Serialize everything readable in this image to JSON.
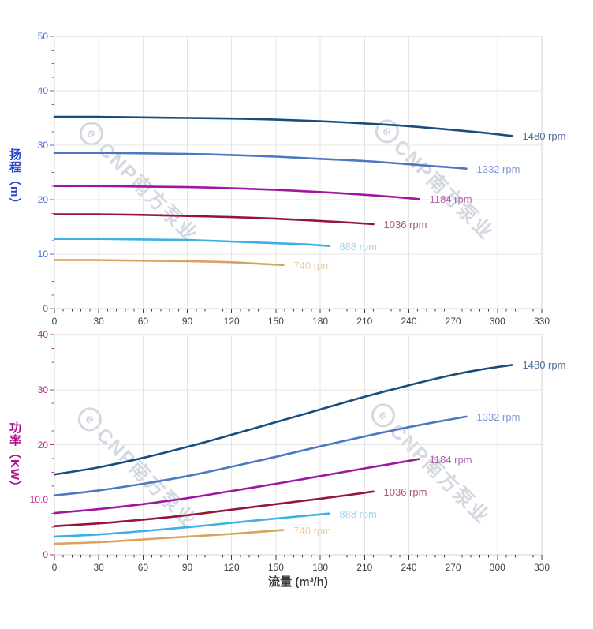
{
  "watermark": {
    "logo": "e",
    "text": "CNP南方泵业"
  },
  "colors": {
    "x_tick": "#3f3f3f",
    "grid": "#e4e4e4",
    "frame": "#d6d6d6",
    "head_axis": "#4a6fd8",
    "head_title": "#2f46cc",
    "power_axis": "#c42894",
    "power_title": "#b30d8e"
  },
  "chart_data": [
    {
      "type": "line",
      "panel": "head",
      "ylabel": "扬程（m）",
      "xlabel": "流量 (m³/h)",
      "xlim": [
        0,
        330
      ],
      "ylim": [
        0,
        50
      ],
      "x_major_step": 30,
      "x_minor_step": 6,
      "y_major_step": 10,
      "y_minor_step": 2.5,
      "grid": true,
      "axis_color": "#4a6fd8",
      "x_tick_labels": [
        "0",
        "30",
        "60",
        "90",
        "120",
        "150",
        "180",
        "210",
        "240",
        "270",
        "300",
        "330"
      ],
      "y_tick_labels": [
        "0",
        "10",
        "20",
        "30",
        "40",
        "50"
      ],
      "legend_position": "right-of-curve-end",
      "series": [
        {
          "name": "1480 rpm",
          "color": "#174e7d",
          "label_color": "#4c6e99",
          "points": [
            [
              0,
              35.2
            ],
            [
              30,
              35.2
            ],
            [
              60,
              35.1
            ],
            [
              90,
              35.0
            ],
            [
              120,
              34.9
            ],
            [
              150,
              34.7
            ],
            [
              180,
              34.4
            ],
            [
              210,
              34.0
            ],
            [
              240,
              33.5
            ],
            [
              270,
              32.8
            ],
            [
              290,
              32.3
            ],
            [
              310,
              31.7
            ]
          ]
        },
        {
          "name": "1332 rpm",
          "color": "#4b78c0",
          "label_color": "#7f9ad6",
          "points": [
            [
              0,
              28.6
            ],
            [
              30,
              28.6
            ],
            [
              60,
              28.5
            ],
            [
              90,
              28.4
            ],
            [
              120,
              28.2
            ],
            [
              150,
              27.9
            ],
            [
              180,
              27.5
            ],
            [
              210,
              27.1
            ],
            [
              240,
              26.5
            ],
            [
              260,
              26.1
            ],
            [
              279,
              25.7
            ]
          ]
        },
        {
          "name": "1184 rpm",
          "color": "#a016a0",
          "label_color": "#b262b2",
          "points": [
            [
              0,
              22.5
            ],
            [
              30,
              22.5
            ],
            [
              60,
              22.4
            ],
            [
              90,
              22.3
            ],
            [
              120,
              22.1
            ],
            [
              150,
              21.8
            ],
            [
              180,
              21.4
            ],
            [
              210,
              20.9
            ],
            [
              230,
              20.5
            ],
            [
              247,
              20.1
            ]
          ]
        },
        {
          "name": "1036 rpm",
          "color": "#961637",
          "label_color": "#a85a72",
          "points": [
            [
              0,
              17.3
            ],
            [
              30,
              17.3
            ],
            [
              60,
              17.2
            ],
            [
              90,
              17.0
            ],
            [
              120,
              16.8
            ],
            [
              150,
              16.5
            ],
            [
              180,
              16.1
            ],
            [
              200,
              15.8
            ],
            [
              216,
              15.5
            ]
          ]
        },
        {
          "name": "888 rpm",
          "color": "#3cb0e4",
          "label_color": "#a3d5f2",
          "points": [
            [
              0,
              12.8
            ],
            [
              30,
              12.8
            ],
            [
              60,
              12.7
            ],
            [
              90,
              12.6
            ],
            [
              120,
              12.3
            ],
            [
              150,
              12.0
            ],
            [
              170,
              11.8
            ],
            [
              186,
              11.5
            ]
          ]
        },
        {
          "name": "740 rpm",
          "color": "#d9a260",
          "label_color": "#ead1a9",
          "points": [
            [
              0,
              8.9
            ],
            [
              30,
              8.9
            ],
            [
              60,
              8.8
            ],
            [
              90,
              8.7
            ],
            [
              120,
              8.5
            ],
            [
              140,
              8.2
            ],
            [
              155,
              8.0
            ]
          ]
        }
      ]
    },
    {
      "type": "line",
      "panel": "power",
      "ylabel": "功率（KW）",
      "xlabel": "流量 (m³/h)",
      "xlim": [
        0,
        330
      ],
      "ylim": [
        0,
        40
      ],
      "x_major_step": 30,
      "x_minor_step": 6,
      "y_major_step": 10,
      "y_minor_step": 2.5,
      "grid": true,
      "axis_color": "#c42894",
      "x_tick_labels": [
        "0",
        "30",
        "60",
        "90",
        "120",
        "150",
        "180",
        "210",
        "240",
        "270",
        "300",
        "330"
      ],
      "y_tick_labels": [
        "0",
        "10.0",
        "20",
        "30",
        "40"
      ],
      "legend_position": "right-of-curve-end",
      "series": [
        {
          "name": "1480 rpm",
          "color": "#174e7d",
          "label_color": "#4c6e99",
          "points": [
            [
              0,
              14.6
            ],
            [
              30,
              15.9
            ],
            [
              60,
              17.6
            ],
            [
              90,
              19.6
            ],
            [
              120,
              21.8
            ],
            [
              150,
              24.1
            ],
            [
              180,
              26.4
            ],
            [
              210,
              28.7
            ],
            [
              240,
              30.8
            ],
            [
              270,
              32.7
            ],
            [
              290,
              33.7
            ],
            [
              310,
              34.5
            ]
          ]
        },
        {
          "name": "1332 rpm",
          "color": "#4b78c0",
          "label_color": "#7f9ad6",
          "points": [
            [
              0,
              10.8
            ],
            [
              30,
              11.7
            ],
            [
              60,
              12.9
            ],
            [
              90,
              14.3
            ],
            [
              120,
              16.0
            ],
            [
              150,
              17.8
            ],
            [
              180,
              19.7
            ],
            [
              210,
              21.5
            ],
            [
              240,
              23.2
            ],
            [
              260,
              24.2
            ],
            [
              279,
              25.1
            ]
          ]
        },
        {
          "name": "1184 rpm",
          "color": "#a016a0",
          "label_color": "#b262b2",
          "points": [
            [
              0,
              7.6
            ],
            [
              30,
              8.3
            ],
            [
              60,
              9.2
            ],
            [
              90,
              10.3
            ],
            [
              120,
              11.6
            ],
            [
              150,
              12.9
            ],
            [
              180,
              14.3
            ],
            [
              210,
              15.7
            ],
            [
              230,
              16.6
            ],
            [
              247,
              17.4
            ]
          ]
        },
        {
          "name": "1036 rpm",
          "color": "#961637",
          "label_color": "#a85a72",
          "points": [
            [
              0,
              5.2
            ],
            [
              30,
              5.7
            ],
            [
              60,
              6.4
            ],
            [
              90,
              7.2
            ],
            [
              120,
              8.2
            ],
            [
              150,
              9.2
            ],
            [
              180,
              10.2
            ],
            [
              200,
              10.9
            ],
            [
              216,
              11.5
            ]
          ]
        },
        {
          "name": "888 rpm",
          "color": "#3cb0e4",
          "label_color": "#a3d5f2",
          "points": [
            [
              0,
              3.3
            ],
            [
              30,
              3.7
            ],
            [
              60,
              4.3
            ],
            [
              90,
              5.0
            ],
            [
              120,
              5.8
            ],
            [
              150,
              6.6
            ],
            [
              170,
              7.1
            ],
            [
              186,
              7.5
            ]
          ]
        },
        {
          "name": "740 rpm",
          "color": "#d9a260",
          "label_color": "#ead1a9",
          "points": [
            [
              0,
              2.0
            ],
            [
              30,
              2.3
            ],
            [
              60,
              2.8
            ],
            [
              90,
              3.3
            ],
            [
              120,
              3.8
            ],
            [
              140,
              4.2
            ],
            [
              155,
              4.5
            ]
          ]
        }
      ]
    }
  ]
}
